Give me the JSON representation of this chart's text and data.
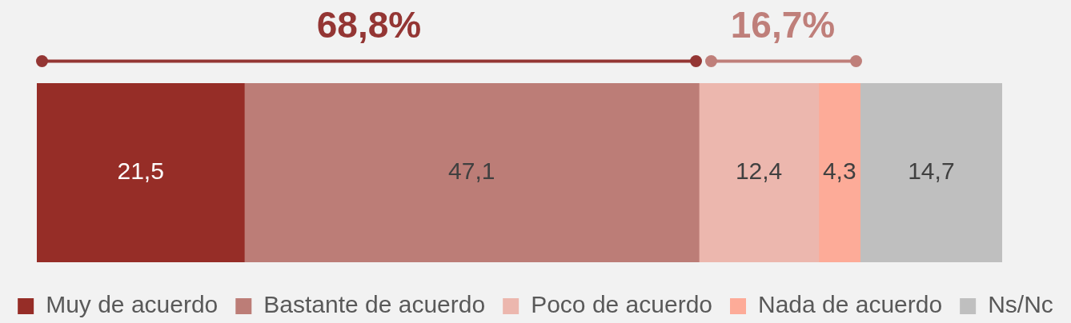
{
  "chart_data": {
    "type": "bar",
    "orientation": "horizontal",
    "stacked": true,
    "categories": [
      null
    ],
    "series": [
      {
        "name": "Muy de acuerdo",
        "color": "#962d27",
        "values": [
          21.5
        ],
        "value_labels": [
          "21,5"
        ]
      },
      {
        "name": "Bastante de acuerdo",
        "color": "#bc7d77",
        "values": [
          47.1
        ],
        "value_labels": [
          "47,1"
        ]
      },
      {
        "name": "Poco de acuerdo",
        "color": "#ecb7ae",
        "values": [
          12.4
        ],
        "value_labels": [
          "12,4"
        ]
      },
      {
        "name": "Nada de acuerdo",
        "color": "#fdab98",
        "values": [
          4.3
        ],
        "value_labels": [
          "4,3"
        ]
      },
      {
        "name": "Ns/Nc",
        "color": "#bfbfbf",
        "values": [
          14.7
        ],
        "value_labels": [
          "14,7"
        ]
      }
    ],
    "tick_labels": false,
    "legend": "bottom",
    "annotations": [
      "68,8%",
      "16,7%"
    ]
  }
}
